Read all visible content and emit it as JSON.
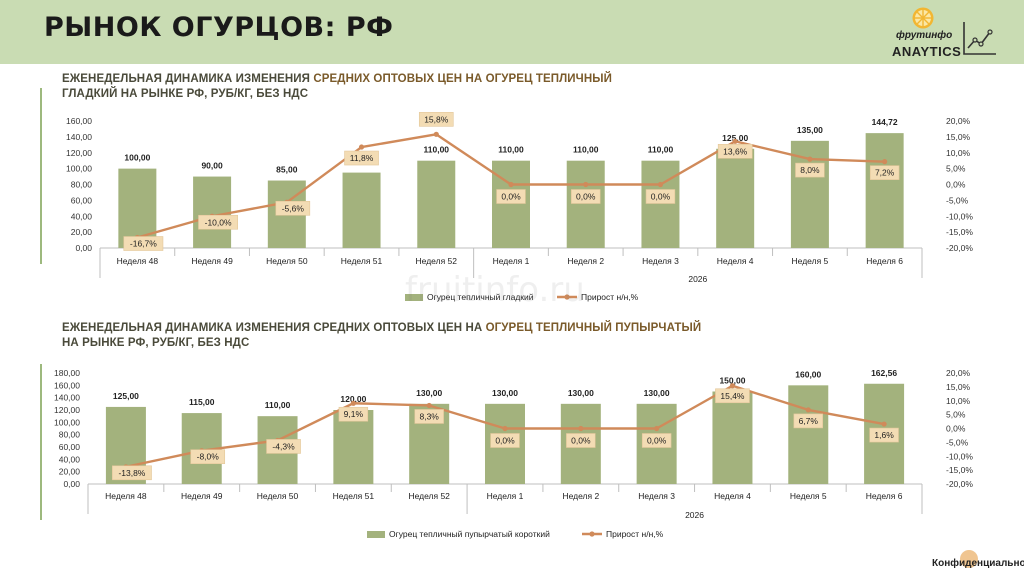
{
  "page": {
    "title": "РЫНОК ОГУРЦОВ: РФ",
    "logo_brand": "фрутинфо",
    "logo_product": "ANAYTICS",
    "watermark": "fruitinfo.ru",
    "footer": "Конфиденциально"
  },
  "colors": {
    "header_bg": "#c9dcb3",
    "bar": "#a3b27d",
    "line": "#d08a5a",
    "label_bg": "#f3dcb4",
    "accent": "#9db97e"
  },
  "chart_data": [
    {
      "type": "bar",
      "title_part1": "ЕЖЕНЕДЕЛЬНАЯ ДИНАМИКА ИЗМЕНЕНИЯ ",
      "title_part2": "СРЕДНИХ ОПТОВЫХ ЦЕН НА ОГУРЕЦ ТЕПЛИЧНЫЙ",
      "title_line2": "ГЛАДКИЙ НА РЫНКЕ РФ, РУБ/КГ, БЕЗ НДС",
      "categories": [
        "Неделя 48",
        "Неделя 49",
        "Неделя 50",
        "Неделя 51",
        "Неделя 52",
        "Неделя 1",
        "Неделя 2",
        "Неделя 3",
        "Неделя 4",
        "Неделя 5",
        "Неделя 6"
      ],
      "year_label": "2026",
      "series": [
        {
          "name": "Огурец тепличный гладкий",
          "type": "bar",
          "values": [
            100.0,
            90.0,
            85.0,
            95.0,
            110.0,
            110.0,
            110.0,
            110.0,
            125.0,
            135.0,
            144.72
          ],
          "labels": [
            "100,00",
            "90,00",
            "85,00",
            "",
            "110,00",
            "110,00",
            "110,00",
            "110,00",
            "125,00",
            "135,00",
            "144,72"
          ]
        },
        {
          "name": "Прирост н/н,%",
          "type": "line",
          "values": [
            -16.7,
            -10.0,
            -5.6,
            11.8,
            15.8,
            0.0,
            0.0,
            0.0,
            13.6,
            8.0,
            7.2
          ],
          "labels": [
            "-16,7%",
            "-10,0%",
            "-5,6%",
            "11,8%",
            "15,8%",
            "0,0%",
            "0,0%",
            "0,0%",
            "13,6%",
            "8,0%",
            "7,2%"
          ]
        }
      ],
      "y_left": {
        "min": 0,
        "max": 160,
        "step": 20,
        "ticks": [
          "0,00",
          "20,00",
          "40,00",
          "60,00",
          "80,00",
          "100,00",
          "120,00",
          "140,00",
          "160,00"
        ]
      },
      "y_right": {
        "min": -20,
        "max": 20,
        "step": 5,
        "ticks": [
          "-20,0%",
          "-15,0%",
          "-10,0%",
          "-5,0%",
          "0,0%",
          "5,0%",
          "10,0%",
          "15,0%",
          "20,0%"
        ]
      },
      "legend_position": "bottom"
    },
    {
      "type": "bar",
      "title_part1": "ЕЖЕНЕДЕЛЬНАЯ ДИНАМИКА ИЗМЕНЕНИЯ СРЕДНИХ ОПТОВЫХ ЦЕН НА ",
      "title_part2": "ОГУРЕЦ ТЕПЛИЧНЫЙ ПУПЫРЧАТЫЙ",
      "title_line2": "НА РЫНКЕ РФ, РУБ/КГ, БЕЗ НДС",
      "categories": [
        "Неделя 48",
        "Неделя 49",
        "Неделя 50",
        "Неделя 51",
        "Неделя 52",
        "Неделя 1",
        "Неделя 2",
        "Неделя 3",
        "Неделя 4",
        "Неделя 5",
        "Неделя 6"
      ],
      "year_label": "2026",
      "series": [
        {
          "name": "Огурец тепличный пупырчатый короткий",
          "type": "bar",
          "values": [
            125.0,
            115.0,
            110.0,
            120.0,
            130.0,
            130.0,
            130.0,
            130.0,
            150.0,
            160.0,
            162.56
          ],
          "labels": [
            "125,00",
            "115,00",
            "110,00",
            "120,00",
            "130,00",
            "130,00",
            "130,00",
            "130,00",
            "150,00",
            "160,00",
            "162,56"
          ]
        },
        {
          "name": "Прирост н/н,%",
          "type": "line",
          "values": [
            -13.8,
            -8.0,
            -4.3,
            9.1,
            8.3,
            0.0,
            0.0,
            0.0,
            15.4,
            6.7,
            1.6
          ],
          "labels": [
            "-13,8%",
            "-8,0%",
            "-4,3%",
            "9,1%",
            "8,3%",
            "0,0%",
            "0,0%",
            "0,0%",
            "15,4%",
            "6,7%",
            "1,6%"
          ]
        }
      ],
      "y_left": {
        "min": 0,
        "max": 180,
        "step": 20,
        "ticks": [
          "0,00",
          "20,00",
          "40,00",
          "60,00",
          "80,00",
          "100,00",
          "120,00",
          "140,00",
          "160,00",
          "180,00"
        ]
      },
      "y_right": {
        "min": -20,
        "max": 20,
        "step": 5,
        "ticks": [
          "-20,0%",
          "-15,0%",
          "-10,0%",
          "-5,0%",
          "0,0%",
          "5,0%",
          "10,0%",
          "15,0%",
          "20,0%"
        ]
      },
      "legend_position": "bottom"
    }
  ]
}
